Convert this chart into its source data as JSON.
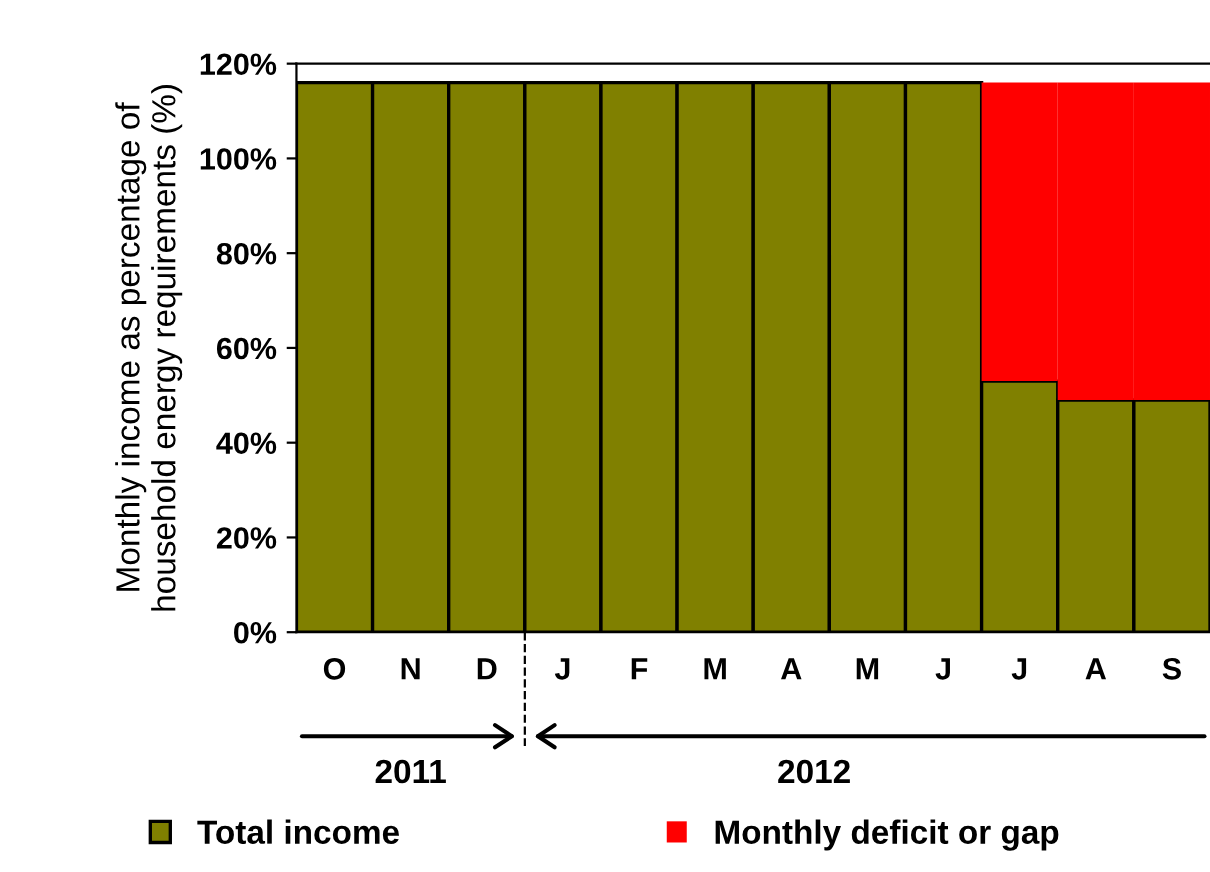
{
  "chart_data": {
    "type": "bar",
    "stacked": true,
    "ylabel": "Monthly income as percentage of\nhousehold energy requirements (%)",
    "categories": [
      "O",
      "N",
      "D",
      "J",
      "F",
      "M",
      "A",
      "M",
      "J",
      "J",
      "A",
      "S"
    ],
    "series": [
      {
        "name": "Total income",
        "color": "#808000",
        "values": [
          116,
          116,
          116,
          116,
          116,
          116,
          116,
          116,
          116,
          53,
          49,
          49
        ]
      },
      {
        "name": "Monthly deficit or gap",
        "color": "#ff0000",
        "values": [
          0,
          0,
          0,
          0,
          0,
          0,
          0,
          0,
          0,
          63,
          67,
          67
        ]
      }
    ],
    "ylim": [
      0,
      120
    ],
    "yticks": [
      {
        "value": 0,
        "label": "0%"
      },
      {
        "value": 20,
        "label": "20%"
      },
      {
        "value": 40,
        "label": "40%"
      },
      {
        "value": 60,
        "label": "60%"
      },
      {
        "value": 80,
        "label": "80%"
      },
      {
        "value": 100,
        "label": "100%"
      },
      {
        "value": 120,
        "label": "120%"
      }
    ],
    "annotations": [
      "2011",
      "2012"
    ],
    "grid": false,
    "legend": "bottom"
  }
}
